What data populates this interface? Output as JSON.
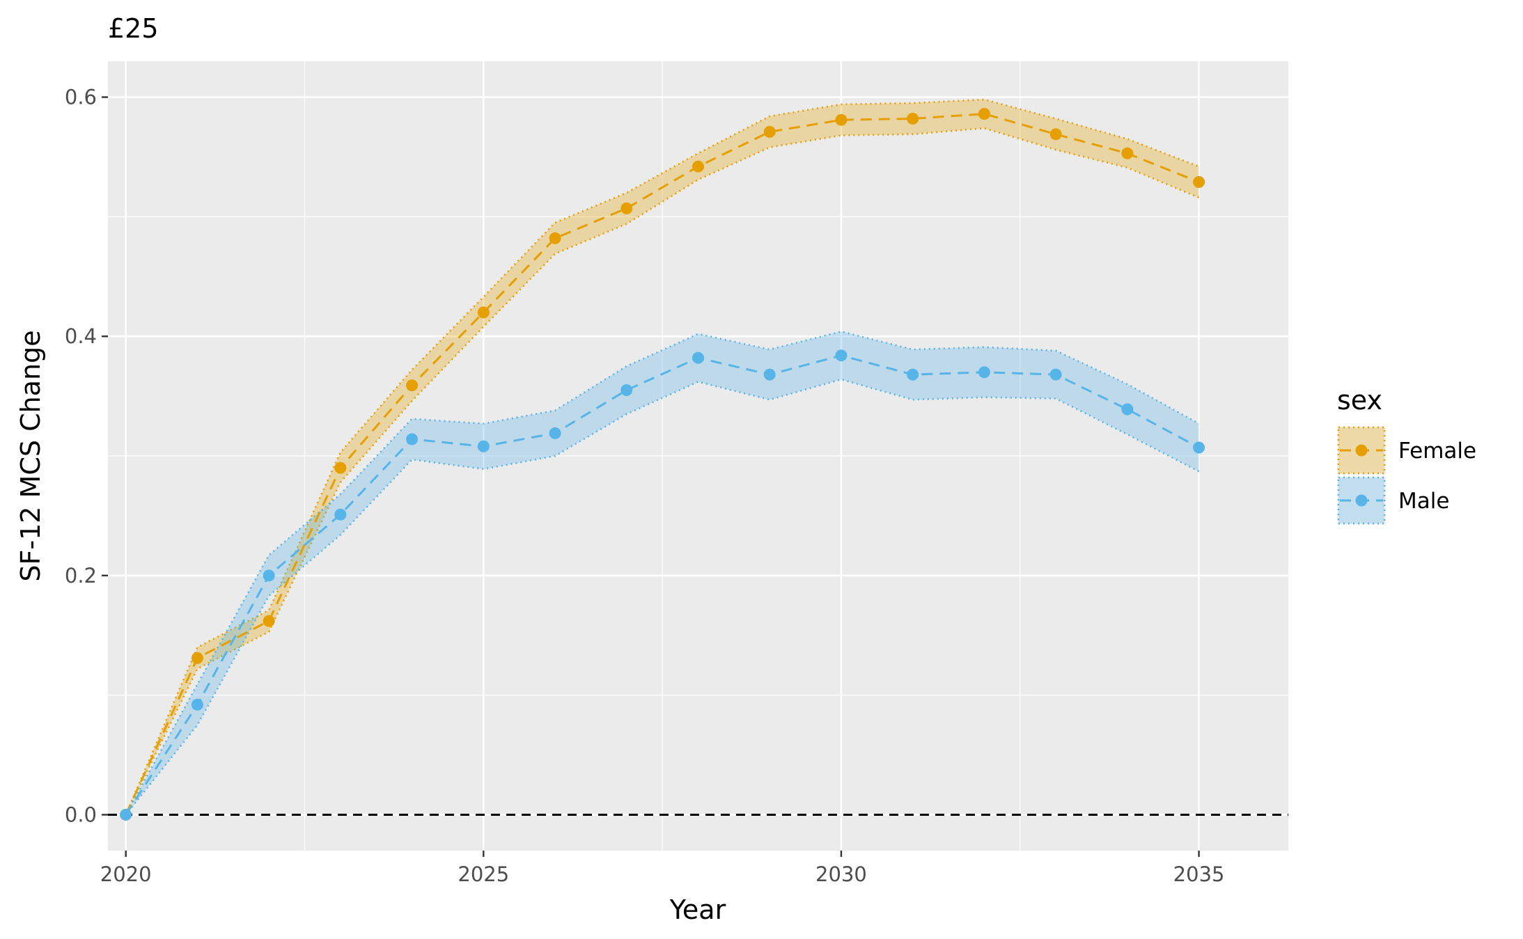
{
  "chart_data": {
    "type": "line",
    "title": "£25",
    "xlabel": "Year",
    "ylabel": "SF-12 MCS Change",
    "x": [
      2020,
      2021,
      2022,
      2023,
      2024,
      2025,
      2026,
      2027,
      2028,
      2029,
      2030,
      2031,
      2032,
      2033,
      2034,
      2035
    ],
    "xlim": [
      2019.75,
      2036.25
    ],
    "ylim": [
      -0.03,
      0.63
    ],
    "x_ticks": [
      2020,
      2025,
      2030,
      2035
    ],
    "x_tick_labels": [
      "2020",
      "2025",
      "2030",
      "2035"
    ],
    "y_ticks": [
      0.0,
      0.2,
      0.4,
      0.6
    ],
    "y_tick_labels": [
      "0.0",
      "0.2",
      "0.4",
      "0.6"
    ],
    "grid": true,
    "reference_line": {
      "y": 0.0,
      "style": "dashed",
      "color": "#000000"
    },
    "legend": {
      "title": "sex",
      "placement": "right"
    },
    "series": [
      {
        "name": "Female",
        "color": "#E69F00",
        "values": [
          0.0,
          0.131,
          0.162,
          0.29,
          0.359,
          0.42,
          0.482,
          0.507,
          0.542,
          0.571,
          0.581,
          0.582,
          0.586,
          0.569,
          0.553,
          0.529
        ],
        "lower": [
          0.0,
          0.122,
          0.153,
          0.278,
          0.346,
          0.408,
          0.469,
          0.494,
          0.531,
          0.558,
          0.568,
          0.569,
          0.574,
          0.556,
          0.541,
          0.516
        ],
        "upper": [
          0.0,
          0.14,
          0.171,
          0.303,
          0.372,
          0.433,
          0.495,
          0.52,
          0.553,
          0.584,
          0.594,
          0.595,
          0.598,
          0.582,
          0.565,
          0.542
        ]
      },
      {
        "name": "Male",
        "color": "#56B4E9",
        "values": [
          0.0,
          0.092,
          0.2,
          0.251,
          0.314,
          0.308,
          0.319,
          0.355,
          0.382,
          0.368,
          0.384,
          0.368,
          0.37,
          0.368,
          0.339,
          0.307
        ],
        "lower": [
          0.0,
          0.075,
          0.183,
          0.234,
          0.297,
          0.289,
          0.3,
          0.335,
          0.362,
          0.347,
          0.364,
          0.347,
          0.349,
          0.348,
          0.318,
          0.287
        ],
        "upper": [
          0.0,
          0.109,
          0.217,
          0.268,
          0.331,
          0.327,
          0.338,
          0.375,
          0.402,
          0.389,
          0.404,
          0.389,
          0.391,
          0.388,
          0.36,
          0.327
        ]
      }
    ]
  }
}
